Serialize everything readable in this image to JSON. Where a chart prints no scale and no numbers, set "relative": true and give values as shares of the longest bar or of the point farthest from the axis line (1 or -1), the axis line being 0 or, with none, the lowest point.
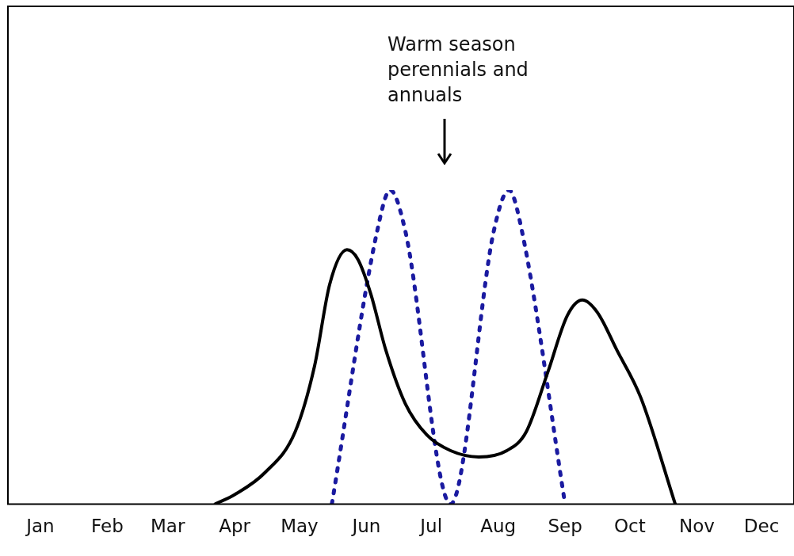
{
  "chart_data": {
    "type": "line",
    "relative": true,
    "xlim": [
      "--01-01",
      "--12-31"
    ],
    "xticks": [
      {
        "value": "--01-16",
        "label": "Jan"
      },
      {
        "value": "--02-16",
        "label": "Feb"
      },
      {
        "value": "--03-16",
        "label": "Mar"
      },
      {
        "value": "--04-16",
        "label": "Apr"
      },
      {
        "value": "--05-16",
        "label": "May"
      },
      {
        "value": "--06-16",
        "label": "Jun"
      },
      {
        "value": "--07-16",
        "label": "Jul"
      },
      {
        "value": "--08-16",
        "label": "Aug"
      },
      {
        "value": "--09-16",
        "label": "Sep"
      },
      {
        "value": "--10-16",
        "label": "Oct"
      },
      {
        "value": "--11-16",
        "label": "Nov"
      },
      {
        "value": "--12-16",
        "label": "Dec"
      }
    ],
    "tick_labels": "x",
    "grid": false,
    "marker": "none",
    "series": [
      {
        "color": "#000000",
        "line_style": "solid",
        "x": [
          "--04-07",
          "--04-16",
          "--04-30",
          "--05-14",
          "--05-23",
          "--05-30",
          "--06-07",
          "--06-12",
          "--06-18",
          "--06-25",
          "--07-04",
          "--07-14",
          "--07-25",
          "--08-07",
          "--08-20",
          "--08-29",
          "--09-08",
          "--09-17",
          "--09-24",
          "--10-01",
          "--10-10",
          "--10-21",
          "--11-06"
        ],
        "values": [
          0,
          0.03,
          0.1,
          0.23,
          0.44,
          0.7,
          0.81,
          0.78,
          0.67,
          0.49,
          0.32,
          0.22,
          0.17,
          0.15,
          0.17,
          0.23,
          0.42,
          0.6,
          0.65,
          0.61,
          0.49,
          0.34,
          0
        ]
      },
      {
        "color": "#1a1aa0",
        "line_style": "dotted",
        "x": [
          "--05-31",
          "--06-21",
          "--06-27",
          "--07-04",
          "--07-25",
          "--08-14",
          "--08-21",
          "--08-27",
          "--09-16"
        ],
        "values": [
          0,
          0.87,
          1,
          0.87,
          0,
          0.87,
          1,
          0.87,
          0
        ]
      }
    ],
    "annotations": [
      "Warm season perennials and annuals"
    ]
  }
}
